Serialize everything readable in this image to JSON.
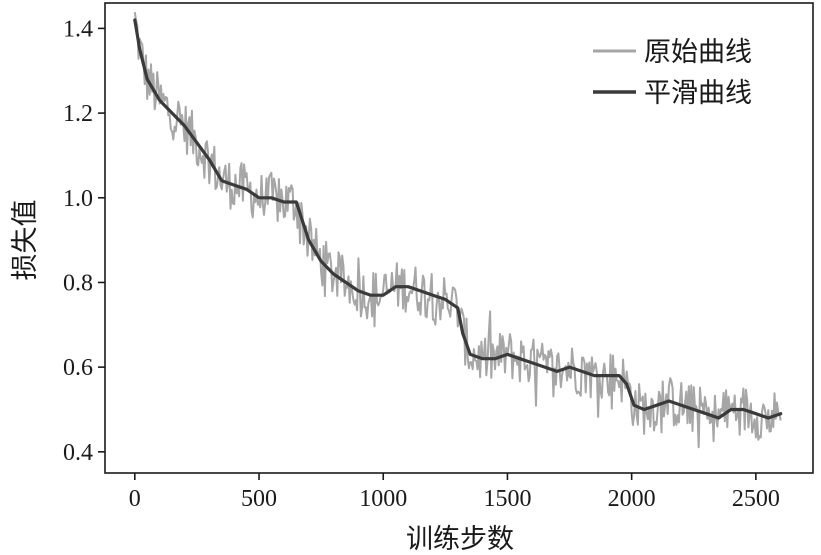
{
  "chart_data": {
    "type": "line",
    "title": "",
    "xlabel": "训练步数",
    "ylabel": "损失值",
    "xlim": [
      -120,
      2730
    ],
    "ylim": [
      0.35,
      1.46
    ],
    "xticks": [
      0,
      500,
      1000,
      1500,
      2000,
      2500
    ],
    "yticks": [
      0.4,
      0.6,
      0.8,
      1.0,
      1.2,
      1.4
    ],
    "xtick_labels": [
      "0",
      "500",
      "1000",
      "1500",
      "2000",
      "2500"
    ],
    "ytick_labels": [
      "0.4",
      "0.6",
      "0.8",
      "1.0",
      "1.2",
      "1.4"
    ],
    "grid": false,
    "legend_position": "top-right",
    "series": [
      {
        "name": "原始曲线",
        "color": "#a6a6a6",
        "keypoints": {
          "x": [
            0,
            20,
            50,
            100,
            150,
            200,
            250,
            300,
            350,
            400,
            450,
            500,
            550,
            600,
            650,
            700,
            750,
            800,
            850,
            900,
            950,
            1000,
            1050,
            1100,
            1150,
            1200,
            1250,
            1300,
            1320,
            1350,
            1400,
            1450,
            1500,
            1550,
            1600,
            1650,
            1700,
            1750,
            1800,
            1850,
            1900,
            1950,
            1980,
            2010,
            2050,
            2100,
            2150,
            2200,
            2250,
            2300,
            2350,
            2400,
            2450,
            2500,
            2550,
            2600
          ],
          "y": [
            1.42,
            1.35,
            1.28,
            1.23,
            1.2,
            1.17,
            1.13,
            1.09,
            1.04,
            1.03,
            1.02,
            1.0,
            1.0,
            0.99,
            0.99,
            0.9,
            0.85,
            0.82,
            0.8,
            0.78,
            0.77,
            0.77,
            0.79,
            0.79,
            0.78,
            0.77,
            0.76,
            0.74,
            0.68,
            0.63,
            0.62,
            0.62,
            0.63,
            0.62,
            0.61,
            0.6,
            0.59,
            0.6,
            0.59,
            0.58,
            0.58,
            0.58,
            0.56,
            0.51,
            0.5,
            0.51,
            0.52,
            0.51,
            0.5,
            0.49,
            0.48,
            0.5,
            0.5,
            0.49,
            0.48,
            0.49
          ]
        },
        "noise_amplitude": 0.06
      },
      {
        "name": "平滑曲线",
        "color": "#3a3a3a",
        "x": [
          0,
          20,
          50,
          100,
          150,
          200,
          250,
          300,
          350,
          400,
          450,
          500,
          550,
          600,
          650,
          700,
          750,
          800,
          850,
          900,
          950,
          1000,
          1050,
          1100,
          1150,
          1200,
          1250,
          1300,
          1320,
          1350,
          1400,
          1450,
          1500,
          1550,
          1600,
          1650,
          1700,
          1750,
          1800,
          1850,
          1900,
          1950,
          1980,
          2010,
          2050,
          2100,
          2150,
          2200,
          2250,
          2300,
          2350,
          2400,
          2450,
          2500,
          2550,
          2600
        ],
        "y": [
          1.42,
          1.35,
          1.28,
          1.23,
          1.2,
          1.17,
          1.13,
          1.09,
          1.04,
          1.03,
          1.02,
          1.0,
          1.0,
          0.99,
          0.99,
          0.9,
          0.85,
          0.82,
          0.8,
          0.78,
          0.77,
          0.77,
          0.79,
          0.79,
          0.78,
          0.77,
          0.76,
          0.74,
          0.68,
          0.63,
          0.62,
          0.62,
          0.63,
          0.62,
          0.61,
          0.6,
          0.59,
          0.6,
          0.59,
          0.58,
          0.58,
          0.58,
          0.56,
          0.51,
          0.5,
          0.51,
          0.52,
          0.51,
          0.5,
          0.49,
          0.48,
          0.5,
          0.5,
          0.49,
          0.48,
          0.49
        ]
      }
    ]
  }
}
